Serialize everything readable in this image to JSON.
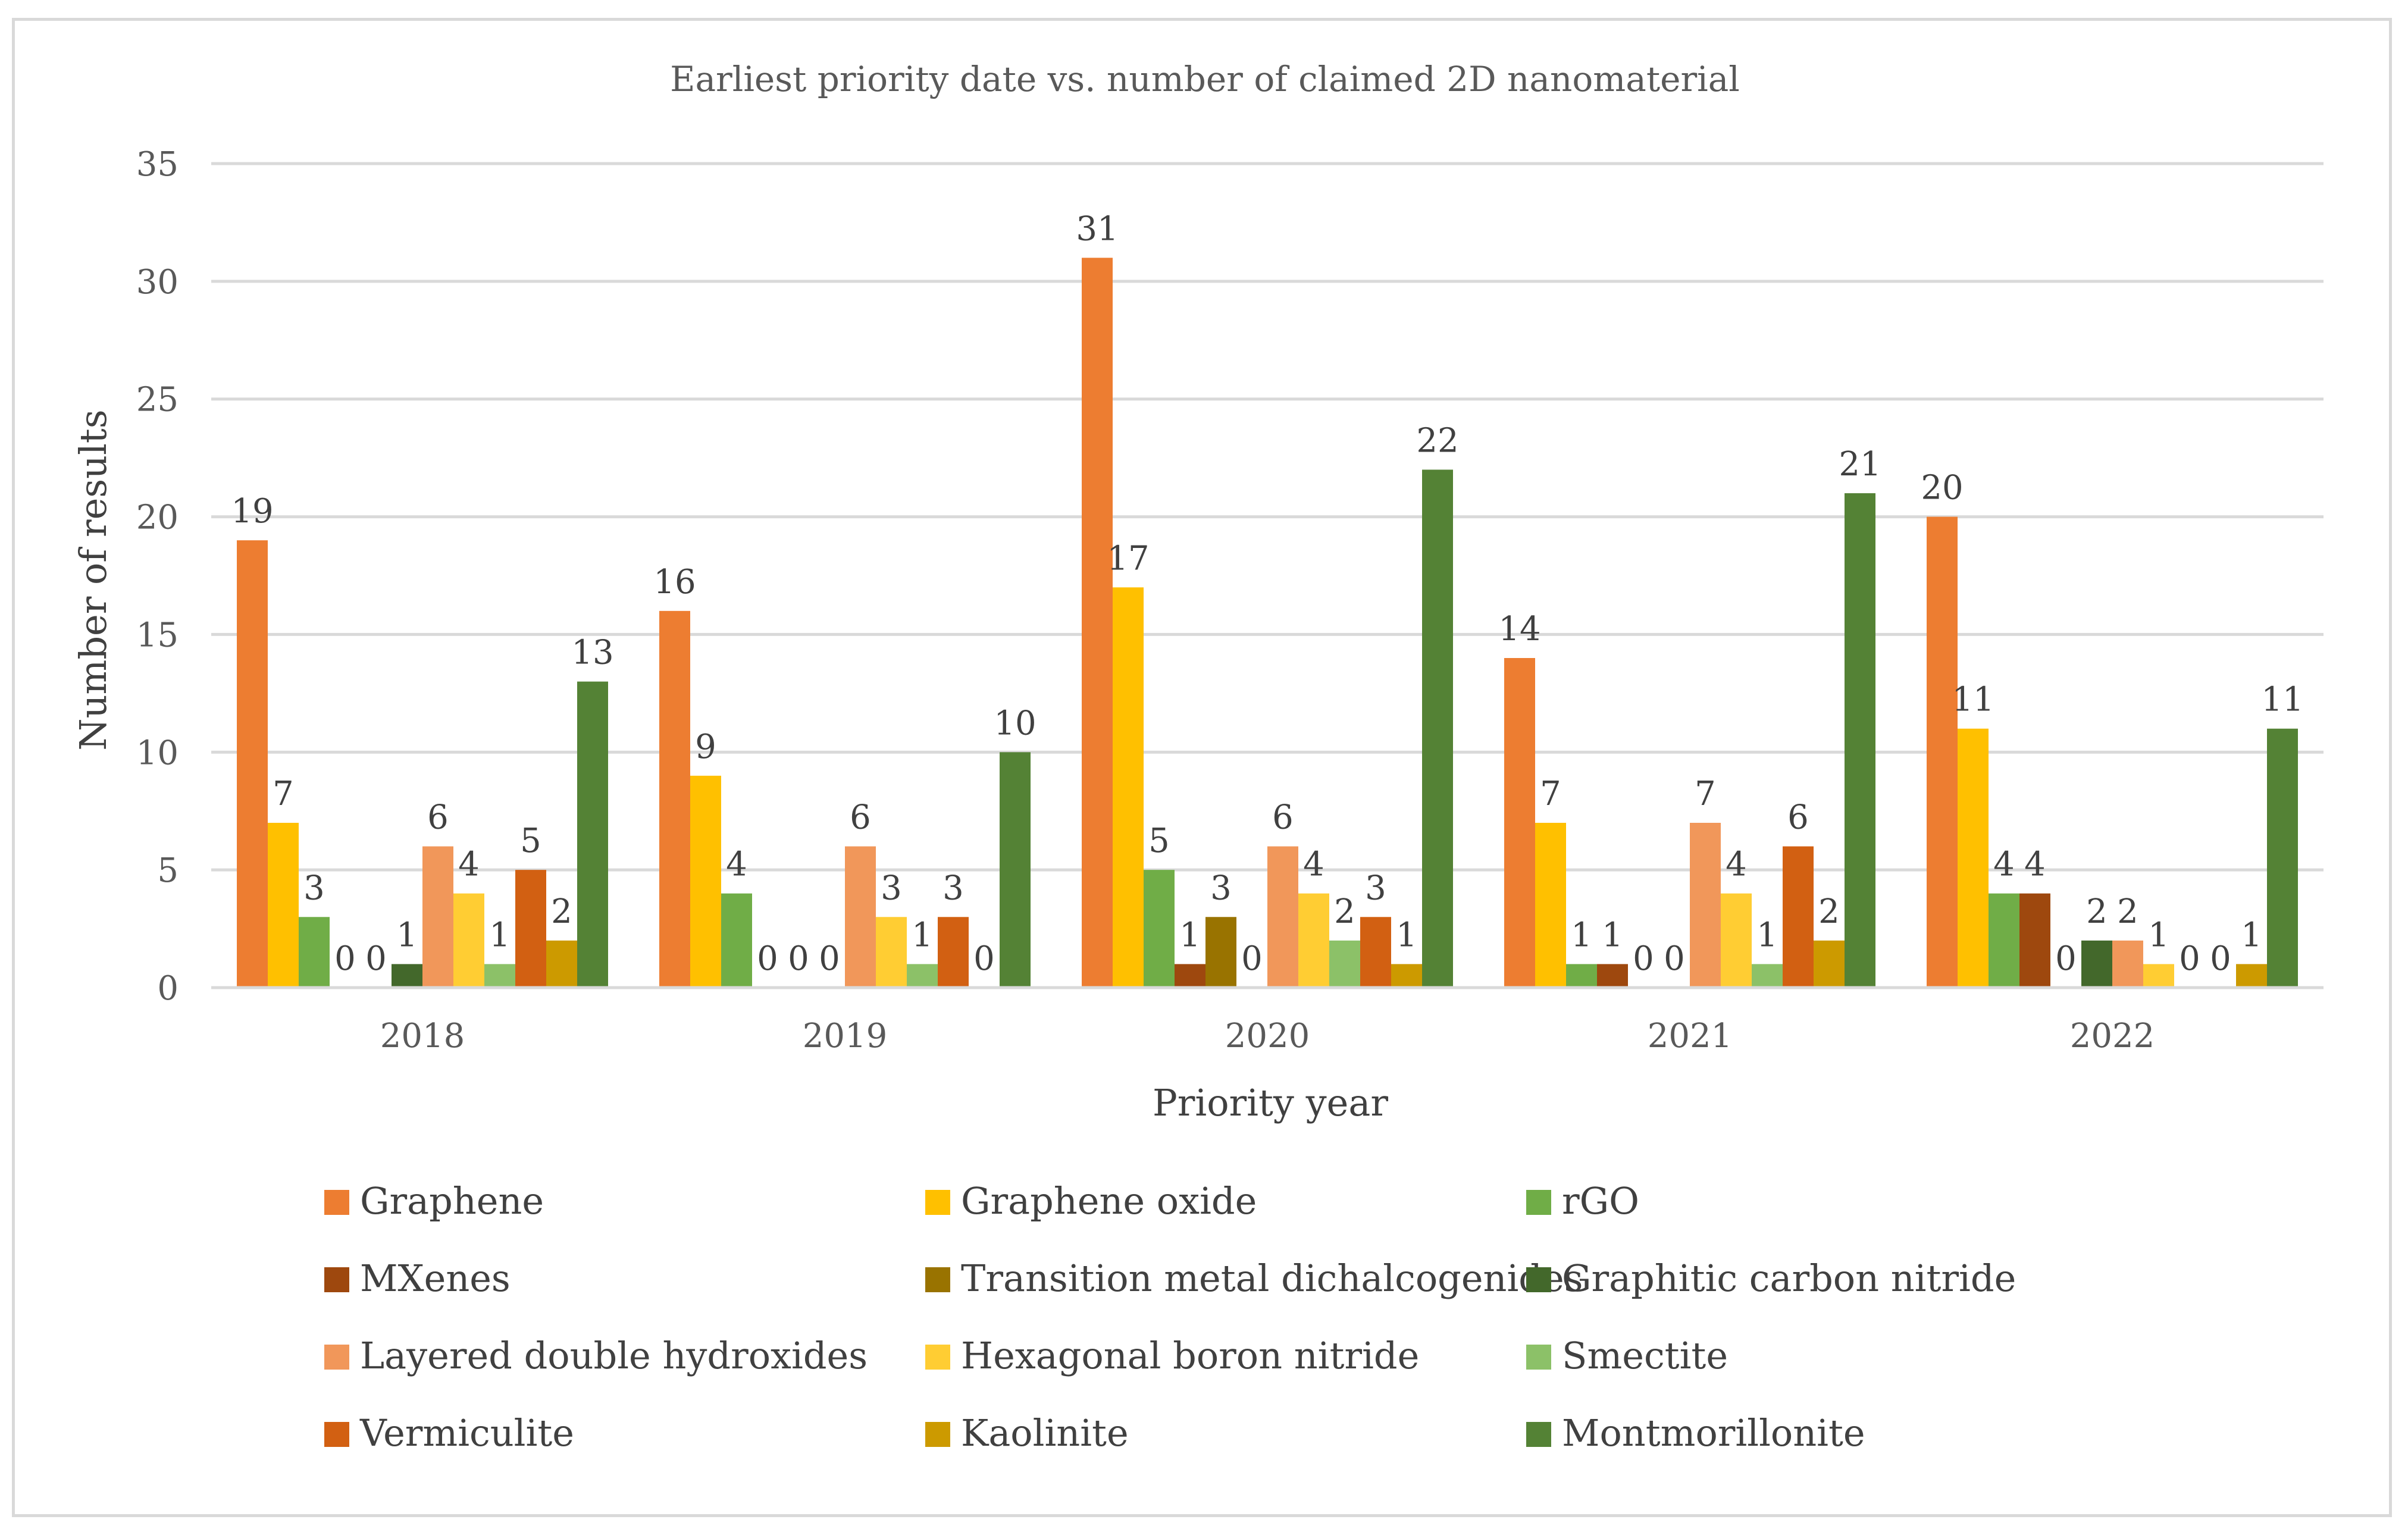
{
  "chart_data": {
    "type": "bar",
    "title": "Earliest priority date vs. number of claimed 2D nanomaterial",
    "xlabel": "Priority year",
    "ylabel": "Number of results",
    "ylim": [
      0,
      35
    ],
    "yticks": [
      0,
      5,
      10,
      15,
      20,
      25,
      30,
      35
    ],
    "grid": true,
    "legend_position": "bottom",
    "categories": [
      "2018",
      "2019",
      "2020",
      "2021",
      "2022"
    ],
    "series": [
      {
        "name": "Graphene",
        "color": "#ED7D31",
        "values": [
          19,
          16,
          31,
          14,
          20
        ]
      },
      {
        "name": "Graphene oxide",
        "color": "#FFC000",
        "values": [
          7,
          9,
          17,
          7,
          11
        ]
      },
      {
        "name": "rGO",
        "color": "#70AD47",
        "values": [
          3,
          4,
          5,
          1,
          4
        ]
      },
      {
        "name": "MXenes",
        "color": "#9E480E",
        "values": [
          0,
          0,
          1,
          1,
          4
        ]
      },
      {
        "name": "Transition metal dichalcogenides",
        "color": "#997300",
        "values": [
          0,
          0,
          3,
          0,
          0
        ]
      },
      {
        "name": "Graphitic carbon nitride",
        "color": "#43682B",
        "values": [
          1,
          0,
          0,
          0,
          2
        ]
      },
      {
        "name": "Layered double hydroxides",
        "color": "#F1975A",
        "values": [
          6,
          6,
          6,
          7,
          2
        ]
      },
      {
        "name": "Hexagonal boron nitride",
        "color": "#FFCD33",
        "values": [
          4,
          3,
          4,
          4,
          1
        ]
      },
      {
        "name": "Smectite",
        "color": "#8CC168",
        "values": [
          1,
          1,
          2,
          1,
          0
        ]
      },
      {
        "name": "Vermiculite",
        "color": "#D26012",
        "values": [
          5,
          3,
          3,
          6,
          0
        ]
      },
      {
        "name": "Kaolinite",
        "color": "#CC9A00",
        "values": [
          2,
          0,
          1,
          2,
          1
        ]
      },
      {
        "name": "Montmorillonite",
        "color": "#548235",
        "values": [
          13,
          10,
          22,
          21,
          11
        ]
      }
    ]
  }
}
